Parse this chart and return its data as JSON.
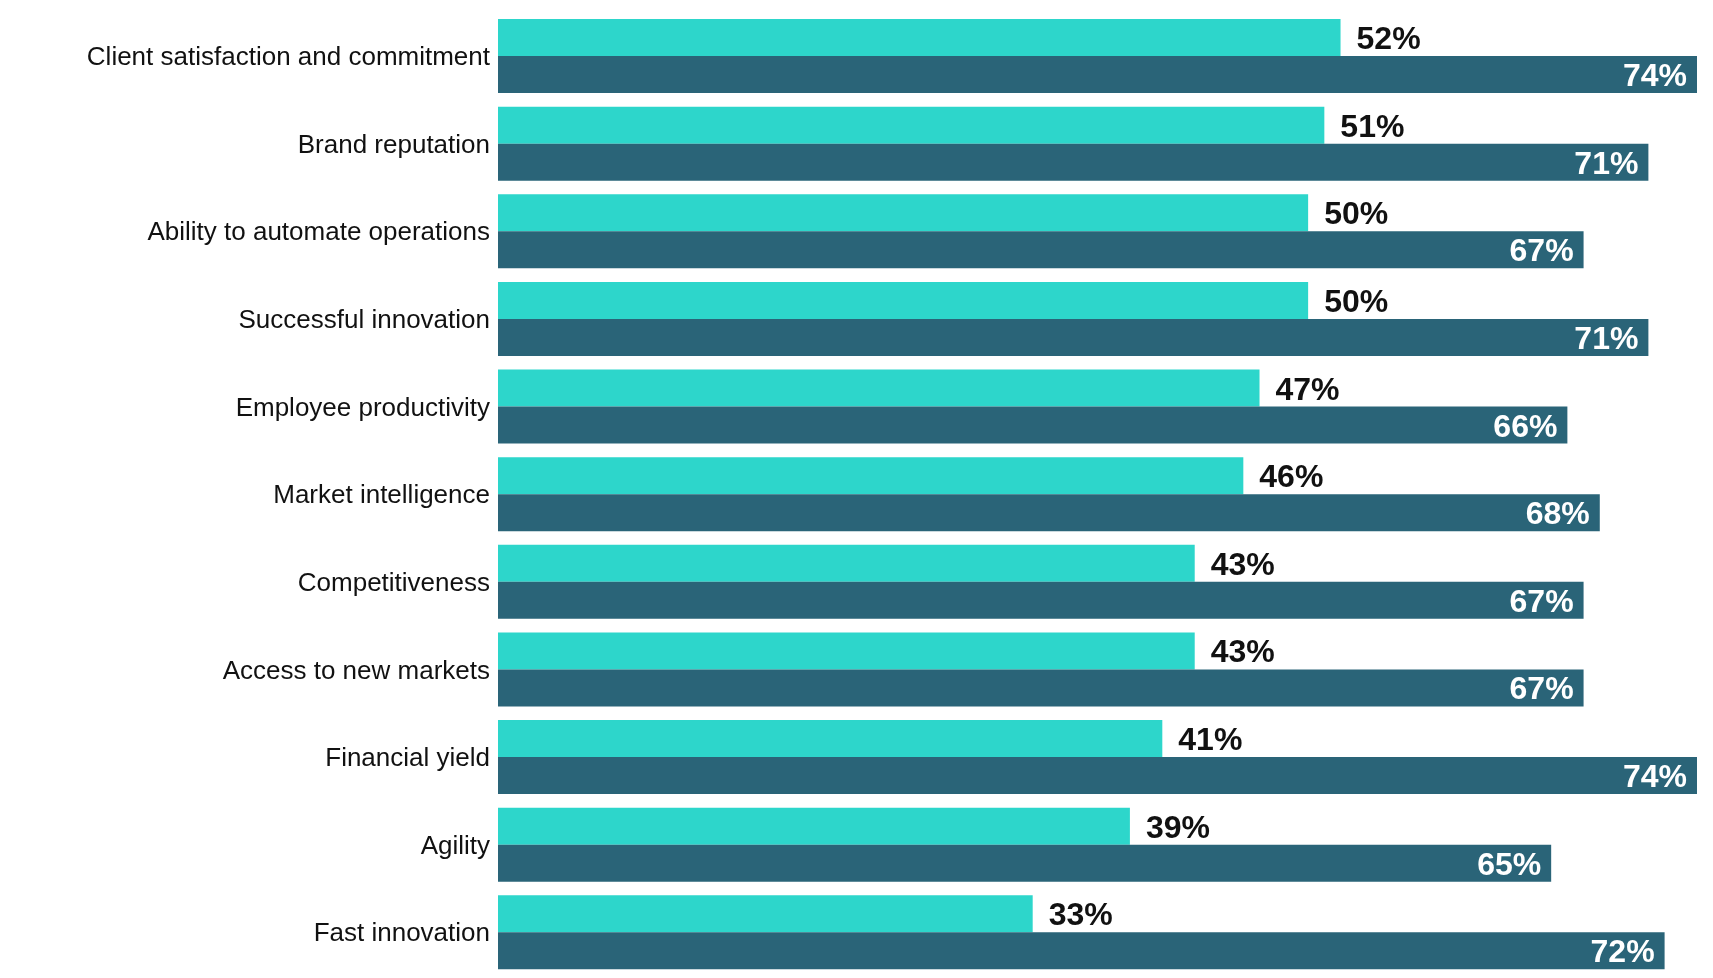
{
  "chart_data": {
    "type": "bar",
    "orientation": "horizontal",
    "categories": [
      "Client satisfaction and commitment",
      "Brand reputation",
      "Ability to automate operations",
      "Successful innovation",
      "Employee productivity",
      "Market intelligence",
      "Competitiveness",
      "Access to new markets",
      "Financial yield",
      "Agility",
      "Fast innovation"
    ],
    "series": [
      {
        "color": "#2dd6cb",
        "values": [
          52,
          51,
          50,
          50,
          47,
          46,
          43,
          43,
          41,
          39,
          33
        ],
        "value_labels": [
          "52%",
          "51%",
          "50%",
          "50%",
          "47%",
          "46%",
          "43%",
          "43%",
          "41%",
          "39%",
          "33%"
        ]
      },
      {
        "color": "#2a6478",
        "values": [
          74,
          71,
          67,
          71,
          66,
          68,
          67,
          67,
          74,
          65,
          72
        ],
        "value_labels": [
          "74%",
          "71%",
          "67%",
          "71%",
          "66%",
          "68%",
          "67%",
          "67%",
          "74%",
          "65%",
          "72%"
        ]
      }
    ]
  }
}
